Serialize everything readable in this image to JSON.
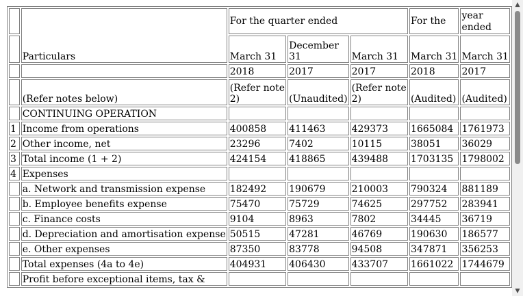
{
  "header": {
    "particulars": "Particulars",
    "quarter_group": "For the quarter ended",
    "for_the": "For the",
    "year_ended": "year ended",
    "columns": [
      {
        "month": "March 31",
        "year": "2018",
        "note": "(Refer note 2)"
      },
      {
        "month": "December 31",
        "year": "2017",
        "note": "(Unaudited)"
      },
      {
        "month": "March 31",
        "year": "2017",
        "note": "(Refer note 2)"
      },
      {
        "month": "March 31",
        "year": "2018",
        "note": "(Audited)"
      },
      {
        "month": "March 31",
        "year": "2017",
        "note": "(Audited)"
      }
    ],
    "refer_notes": "(Refer notes below)"
  },
  "rows": [
    {
      "no": "",
      "label": "CONTINUING OPERATION",
      "values": [
        "",
        "",
        "",
        "",
        ""
      ]
    },
    {
      "no": "1",
      "label": "Income from operations",
      "values": [
        "400858",
        "411463",
        "429373",
        "1665084",
        "1761973"
      ]
    },
    {
      "no": "2",
      "label": "Other income, net",
      "values": [
        "23296",
        "7402",
        "10115",
        "38051",
        "36029"
      ]
    },
    {
      "no": "3",
      "label": "Total income (1 + 2)",
      "values": [
        "424154",
        "418865",
        "439488",
        "1703135",
        "1798002"
      ]
    },
    {
      "no": "4",
      "label": "Expenses",
      "values": [
        "",
        "",
        "",
        "",
        ""
      ]
    },
    {
      "no": "",
      "label": "a. Network and transmission expense",
      "values": [
        "182492",
        "190679",
        "210003",
        "790324",
        "881189"
      ]
    },
    {
      "no": "",
      "label": "b. Employee benefits expense",
      "values": [
        "75470",
        "75729",
        "74625",
        "297752",
        "283941"
      ]
    },
    {
      "no": "",
      "label": "c. Finance costs",
      "values": [
        "9104",
        "8963",
        "7802",
        "34445",
        "36719"
      ]
    },
    {
      "no": "",
      "label": "d. Depreciation and amortisation expense",
      "values": [
        "50515",
        "47281",
        "46769",
        "190630",
        "186577"
      ]
    },
    {
      "no": "",
      "label": "e. Other expenses",
      "values": [
        "87350",
        "83778",
        "94508",
        "347871",
        "356253"
      ]
    },
    {
      "no": "",
      "label": "Total expenses (4a to 4e)",
      "values": [
        "404931",
        "406430",
        "433707",
        "1661022",
        "1744679"
      ]
    },
    {
      "no": "",
      "label": "Profit before exceptional items, tax &",
      "values": [
        "",
        "",
        "",
        "",
        ""
      ]
    }
  ],
  "scrollbar": {
    "up_icon": "▲",
    "down_icon": "▼"
  }
}
